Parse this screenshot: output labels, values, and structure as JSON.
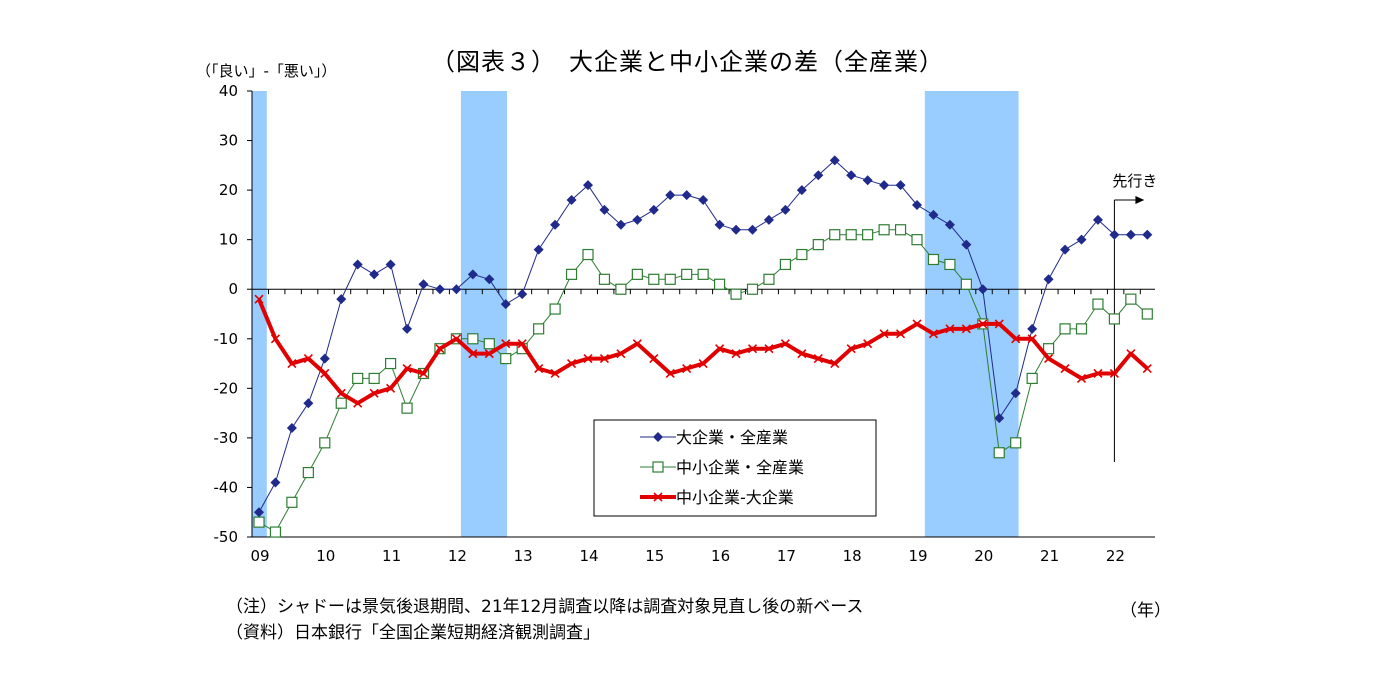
{
  "chart_data": {
    "type": "line",
    "title": "（図表３）　大企業と中小企業の差（全産業）",
    "ylabel": "（「良い」-「悪い」）",
    "xlabel": "（年）",
    "ylim": [
      -50,
      40
    ],
    "yticks": [
      40,
      30,
      20,
      10,
      0,
      -10,
      -20,
      -30,
      -40,
      -50
    ],
    "xtick_labels": [
      "09",
      "10",
      "11",
      "12",
      "13",
      "14",
      "15",
      "16",
      "17",
      "18",
      "19",
      "20",
      "21",
      "22"
    ],
    "forecast_label": "先行き",
    "shaded_periods": [
      [
        0,
        0.9
      ],
      [
        12.7,
        15.5
      ],
      [
        40.9,
        46.6
      ]
    ],
    "forecast_index": 52,
    "series": [
      {
        "name": "大企業・全産業",
        "color": "#1f2a8a",
        "marker": "diamond",
        "values": [
          -45,
          -39,
          -28,
          -23,
          -14,
          -2,
          5,
          3,
          5,
          -8,
          1,
          0,
          0,
          3,
          2,
          -3,
          -1,
          8,
          13,
          18,
          21,
          16,
          13,
          14,
          16,
          19,
          19,
          18,
          13,
          12,
          12,
          14,
          16,
          20,
          23,
          26,
          23,
          22,
          21,
          21,
          17,
          15,
          13,
          9,
          0,
          -26,
          -21,
          -8,
          2,
          8,
          10,
          14,
          11,
          11,
          11
        ]
      },
      {
        "name": "中小企業・全産業",
        "color": "#2e7d32",
        "marker": "square",
        "values": [
          -47,
          -49,
          -43,
          -37,
          -31,
          -23,
          -18,
          -18,
          -15,
          -24,
          -17,
          -12,
          -10,
          -10,
          -11,
          -14,
          -12,
          -8,
          -4,
          3,
          7,
          2,
          0,
          3,
          2,
          2,
          3,
          3,
          1,
          -1,
          0,
          2,
          5,
          7,
          9,
          11,
          11,
          11,
          12,
          12,
          10,
          6,
          5,
          1,
          -7,
          -33,
          -31,
          -18,
          -12,
          -8,
          -8,
          -3,
          -6,
          -2,
          -5
        ]
      },
      {
        "name": "中小企業-大企業",
        "color": "#e00000",
        "marker": "x",
        "values": [
          -2,
          -10,
          -15,
          -14,
          -17,
          -21,
          -23,
          -21,
          -20,
          -16,
          -17,
          -12,
          -10,
          -13,
          -13,
          -11,
          -11,
          -16,
          -17,
          -15,
          -14,
          -14,
          -13,
          -11,
          -14,
          -17,
          -16,
          -15,
          -12,
          -13,
          -12,
          -12,
          -11,
          -13,
          -14,
          -15,
          -12,
          -11,
          -9,
          -9,
          -7,
          -9,
          -8,
          -8,
          -7,
          -7,
          -10,
          -10,
          -14,
          -16,
          -18,
          -17,
          -17,
          -13,
          -16
        ]
      }
    ]
  },
  "notes": [
    "（注）シャドーは景気後退期間、21年12月調査以降は調査対象見直し後の新ベース",
    "（資料）日本銀行「全国企業短期経済観測調査」"
  ]
}
